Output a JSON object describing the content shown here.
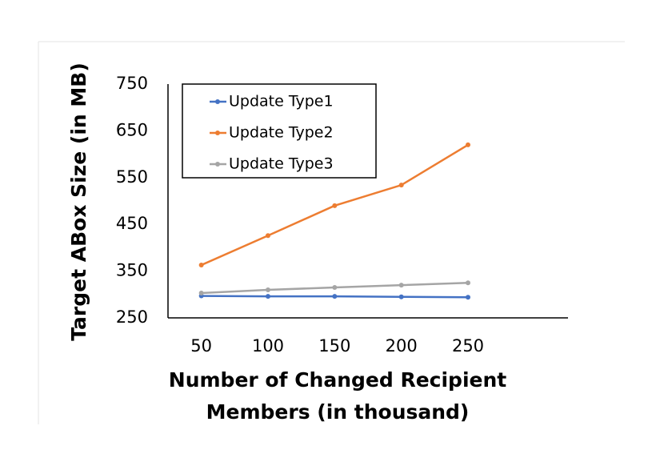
{
  "chart_data": {
    "type": "line",
    "ylabel": "Target ABox Size (in MB)",
    "xlabel": [
      "Number of Changed Recipient",
      "Members (in thousand)"
    ],
    "categories": [
      "50",
      "100",
      "150",
      "200",
      "250",
      null
    ],
    "series": [
      {
        "name": "Update Type1",
        "color": "#4472c4",
        "values": [
          297,
          296,
          296,
          295,
          294,
          null
        ]
      },
      {
        "name": "Update Type2",
        "color": "#ed7d31",
        "values": [
          363,
          426,
          490,
          534,
          620,
          null
        ]
      },
      {
        "name": "Update Type3",
        "color": "#a5a5a5",
        "values": [
          303,
          310,
          315,
          320,
          325,
          null
        ]
      }
    ],
    "ylim": [
      250,
      750
    ],
    "yticks": [
      250,
      350,
      450,
      550,
      650,
      750
    ],
    "grid": false,
    "legend": "top-left"
  }
}
